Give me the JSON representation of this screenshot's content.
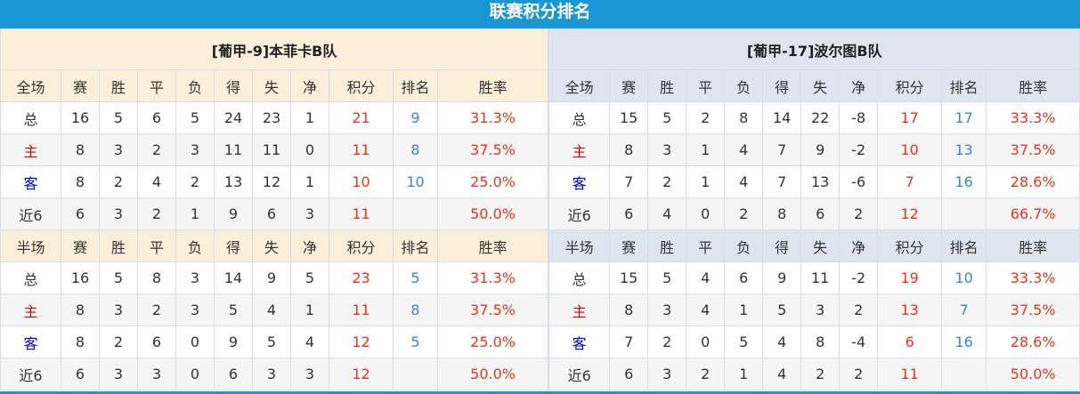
{
  "title": "联赛积分排名",
  "headers_full": [
    "全场",
    "赛",
    "胜",
    "平",
    "负",
    "得",
    "失",
    "净",
    "积分",
    "排名",
    "胜率"
  ],
  "headers_half": [
    "半场",
    "赛",
    "胜",
    "平",
    "负",
    "得",
    "失",
    "净",
    "积分",
    "排名",
    "胜率"
  ],
  "teams": [
    {
      "name": "[葡甲-9]本菲卡B队",
      "full": [
        [
          "总",
          "16",
          "5",
          "6",
          "5",
          "24",
          "23",
          "1",
          "21",
          "9",
          "31.3%"
        ],
        [
          "主",
          "8",
          "3",
          "2",
          "3",
          "11",
          "11",
          "0",
          "11",
          "8",
          "37.5%"
        ],
        [
          "客",
          "8",
          "2",
          "4",
          "2",
          "13",
          "12",
          "1",
          "10",
          "10",
          "25.0%"
        ],
        [
          "近6",
          "6",
          "3",
          "2",
          "1",
          "9",
          "6",
          "3",
          "11",
          "",
          "50.0%"
        ]
      ],
      "half": [
        [
          "总",
          "16",
          "5",
          "8",
          "3",
          "14",
          "9",
          "5",
          "23",
          "5",
          "31.3%"
        ],
        [
          "主",
          "8",
          "3",
          "2",
          "3",
          "5",
          "4",
          "1",
          "11",
          "8",
          "37.5%"
        ],
        [
          "客",
          "8",
          "2",
          "6",
          "0",
          "9",
          "5",
          "4",
          "12",
          "5",
          "25.0%"
        ],
        [
          "近6",
          "6",
          "3",
          "3",
          "0",
          "6",
          "3",
          "3",
          "12",
          "",
          "50.0%"
        ]
      ]
    },
    {
      "name": "[葡甲-17]波尔图B队",
      "full": [
        [
          "总",
          "15",
          "5",
          "2",
          "8",
          "14",
          "22",
          "-8",
          "17",
          "17",
          "33.3%"
        ],
        [
          "主",
          "8",
          "3",
          "1",
          "4",
          "7",
          "9",
          "-2",
          "10",
          "13",
          "37.5%"
        ],
        [
          "客",
          "7",
          "2",
          "1",
          "4",
          "7",
          "13",
          "-6",
          "7",
          "16",
          "28.6%"
        ],
        [
          "近6",
          "6",
          "4",
          "0",
          "2",
          "8",
          "6",
          "2",
          "12",
          "",
          "66.7%"
        ]
      ],
      "half": [
        [
          "总",
          "15",
          "5",
          "4",
          "6",
          "9",
          "11",
          "-2",
          "19",
          "10",
          "33.3%"
        ],
        [
          "主",
          "8",
          "3",
          "4",
          "1",
          "5",
          "3",
          "2",
          "13",
          "7",
          "37.5%"
        ],
        [
          "客",
          "7",
          "2",
          "0",
          "5",
          "4",
          "8",
          "-4",
          "6",
          "16",
          "28.6%"
        ],
        [
          "近6",
          "6",
          "3",
          "2",
          "1",
          "4",
          "2",
          "2",
          "11",
          "",
          "50.0%"
        ]
      ]
    }
  ]
}
